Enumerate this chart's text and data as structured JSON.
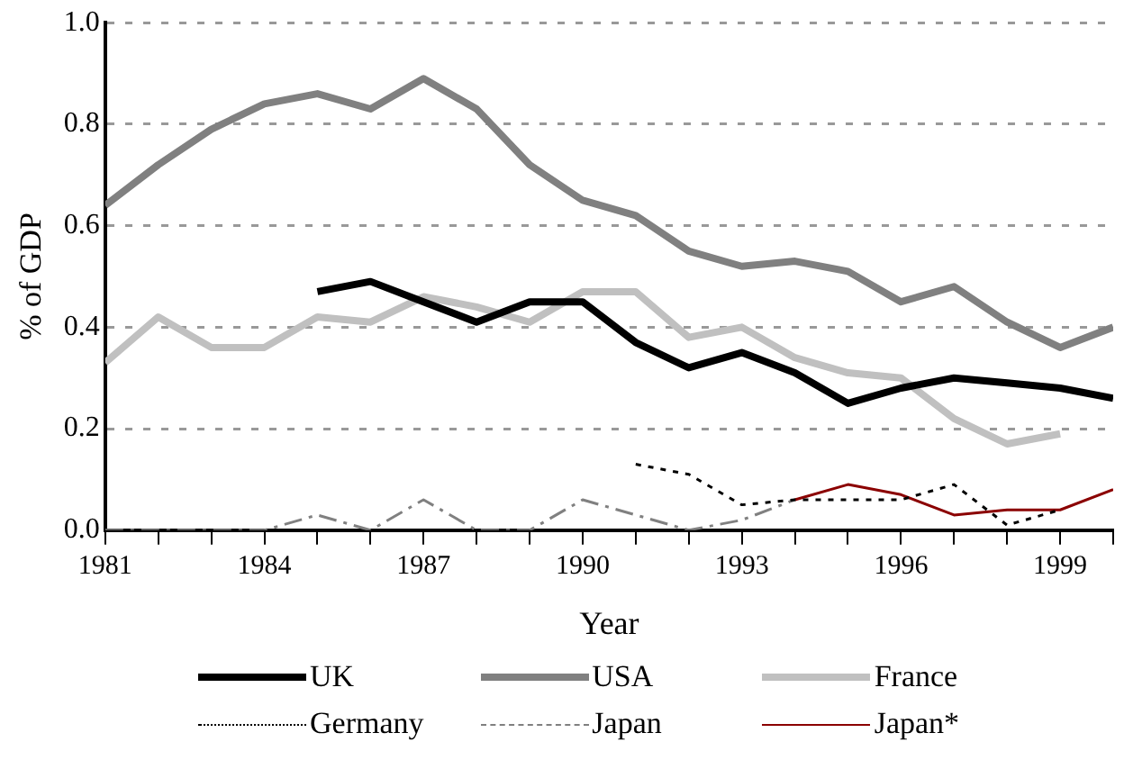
{
  "chart_data": {
    "type": "line",
    "xlabel": "Year",
    "ylabel": "% of GDP",
    "x": [
      1981,
      1982,
      1983,
      1984,
      1985,
      1986,
      1987,
      1988,
      1989,
      1990,
      1991,
      1992,
      1993,
      1994,
      1995,
      1996,
      1997,
      1998,
      1999,
      2000
    ],
    "series": [
      {
        "name": "UK",
        "color": "#000000",
        "line_style": "solid",
        "values": [
          null,
          null,
          null,
          null,
          0.47,
          0.49,
          0.45,
          0.41,
          0.45,
          0.45,
          0.37,
          0.32,
          0.35,
          0.31,
          0.25,
          0.28,
          0.3,
          0.29,
          0.28,
          0.26
        ]
      },
      {
        "name": "USA",
        "color": "#808080",
        "line_style": "solid",
        "values": [
          0.64,
          0.72,
          0.79,
          0.84,
          0.86,
          0.83,
          0.89,
          0.83,
          0.72,
          0.65,
          0.62,
          0.55,
          0.52,
          0.53,
          0.51,
          0.45,
          0.48,
          0.41,
          0.36,
          0.4
        ]
      },
      {
        "name": "France",
        "color": "#c0c0c0",
        "line_style": "solid",
        "values": [
          0.33,
          0.42,
          0.36,
          0.36,
          0.42,
          0.41,
          0.46,
          0.44,
          0.41,
          0.47,
          0.47,
          0.38,
          0.4,
          0.34,
          0.31,
          0.3,
          0.22,
          0.17,
          0.19,
          null
        ]
      },
      {
        "name": "Germany",
        "color": "#000000",
        "line_style": "dotted",
        "values": [
          null,
          null,
          null,
          null,
          null,
          null,
          null,
          null,
          null,
          null,
          0.13,
          0.11,
          0.05,
          0.06,
          0.06,
          0.06,
          0.09,
          0.01,
          0.04,
          null
        ]
      },
      {
        "name": "Japan",
        "color": "#808080",
        "line_style": "dashed",
        "values": [
          0,
          0,
          0,
          0,
          0.03,
          0,
          0.06,
          0,
          0,
          0.06,
          0.03,
          0,
          0.02,
          0.06,
          null,
          null,
          null,
          null,
          null,
          null
        ]
      },
      {
        "name": "Japan*",
        "color": "#8b0000",
        "line_style": "solid",
        "values": [
          null,
          null,
          null,
          null,
          null,
          null,
          null,
          null,
          null,
          null,
          null,
          null,
          null,
          0.06,
          0.09,
          0.07,
          0.03,
          0.04,
          0.04,
          0.08
        ]
      }
    ],
    "xlim": [
      1981,
      2000
    ],
    "xticks": [
      1981,
      {
        "value": 1982,
        "label": null
      },
      {
        "value": 1983,
        "label": null
      },
      1984,
      {
        "value": 1985,
        "label": null
      },
      {
        "value": 1986,
        "label": null
      },
      1987,
      {
        "value": 1988,
        "label": null
      },
      {
        "value": 1989,
        "label": null
      },
      1990,
      {
        "value": 1991,
        "label": null
      },
      {
        "value": 1992,
        "label": null
      },
      1993,
      {
        "value": 1994,
        "label": null
      },
      {
        "value": 1995,
        "label": null
      },
      1996,
      {
        "value": 1997,
        "label": null
      },
      {
        "value": 1998,
        "label": null
      },
      1999,
      {
        "value": 2000,
        "label": null
      }
    ],
    "ylim": [
      0,
      1
    ],
    "yticks": [
      {
        "value": 0,
        "label": "0.0"
      },
      {
        "value": 0.2,
        "label": "0.2"
      },
      {
        "value": 0.4,
        "label": "0.4"
      },
      {
        "value": 0.6,
        "label": "0.6"
      },
      {
        "value": 0.8,
        "label": "0.8"
      },
      {
        "value": 1,
        "label": "1.0"
      }
    ],
    "grid": "y",
    "legend": "bottom",
    "marker": "none"
  }
}
